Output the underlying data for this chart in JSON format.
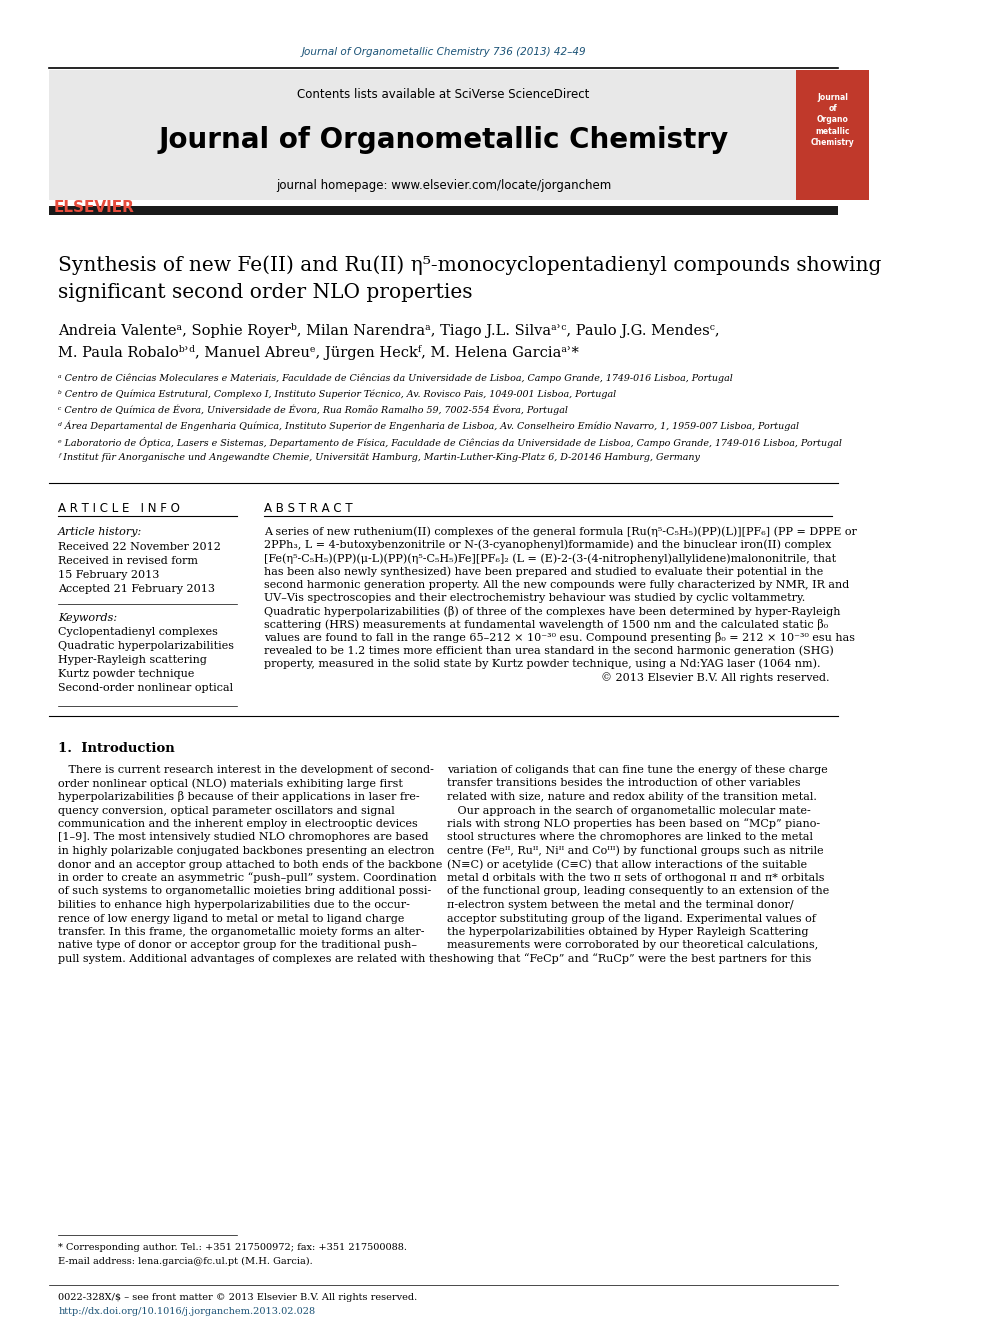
{
  "page_bg": "#ffffff",
  "top_link_text": "Journal of Organometallic Chemistry 736 (2013) 42–49",
  "top_link_color": "#1a5276",
  "journal_title": "Journal of Organometallic Chemistry",
  "journal_homepage": "journal homepage: www.elsevier.com/locate/jorganchem",
  "contents_text": "Contents lists available at ",
  "sciverse_text": "SciVerse ScienceDirect",
  "header_bg": "#e8e8e8",
  "dark_bar_color": "#1a1a1a",
  "article_title_line1": "Synthesis of new Fe(II) and Ru(II) η⁵-monocyclopentadienyl compounds showing",
  "article_title_line2": "significant second order NLO properties",
  "authors_line1": "Andreia Valenteᵃ, Sophie Royerᵇ, Milan Narendraᵃ, Tiago J.L. Silvaᵃʾᶜ, Paulo J.G. Mendesᶜ,",
  "authors_line2": "M. Paula Robaloᵇʾᵈ, Manuel Abreuᵉ, Jürgen Heckᶠ, M. Helena Garciaᵃʾ*",
  "affil_a": "ᵃ Centro de Ciências Moleculares e Materiais, Faculdade de Ciências da Universidade de Lisboa, Campo Grande, 1749-016 Lisboa, Portugal",
  "affil_b": "ᵇ Centro de Química Estrutural, Complexo I, Instituto Superior Técnico, Av. Rovisco Pais, 1049-001 Lisboa, Portugal",
  "affil_c": "ᶜ Centro de Química de Évora, Universidade de Évora, Rua Romão Ramalho 59, 7002-554 Évora, Portugal",
  "affil_d": "ᵈ Área Departamental de Engenharia Química, Instituto Superior de Engenharia de Lisboa, Av. Conselheiro Emídio Navarro, 1, 1959-007 Lisboa, Portugal",
  "affil_e": "ᵉ Laboratorio de Óptica, Lasers e Sistemas, Departamento de Física, Faculdade de Ciências da Universidade de Lisboa, Campo Grande, 1749-016 Lisboa, Portugal",
  "affil_f": "ᶠ Institut für Anorganische und Angewandte Chemie, Universität Hamburg, Martin-Luther-King-Platz 6, D-20146 Hamburg, Germany",
  "article_info_title": "A R T I C L E   I N F O",
  "article_history_label": "Article history:",
  "article_history": [
    "Received 22 November 2012",
    "Received in revised form",
    "15 February 2013",
    "Accepted 21 February 2013"
  ],
  "keywords_label": "Keywords:",
  "keywords": [
    "Cyclopentadienyl complexes",
    "Quadratic hyperpolarizabilities",
    "Hyper-Rayleigh scattering",
    "Kurtz powder technique",
    "Second-order nonlinear optical"
  ],
  "abstract_title": "A B S T R A C T",
  "abstract_lines": [
    "A series of new ruthenium(II) complexes of the general formula [Ru(η⁵-C₅H₅)(PP)(L)][PF₆] (PP = DPPE or",
    "2PPh₃, L = 4-butoxybenzonitrile or N-(3-cyanophenyl)formamide) and the binuclear iron(II) complex",
    "[Fe(η⁵-C₅H₅)(PP)(μ-L)(PP)(η⁵-C₅H₅)Fe][PF₆]₂ (L = (E)-2-(3-(4-nitrophenyl)allylidene)malononitrile, that",
    "has been also newly synthesized) have been prepared and studied to evaluate their potential in the",
    "second harmonic generation property. All the new compounds were fully characterized by NMR, IR and",
    "UV–Vis spectroscopies and their electrochemistry behaviour was studied by cyclic voltammetry.",
    "Quadratic hyperpolarizabilities (β) of three of the complexes have been determined by hyper-Rayleigh",
    "scattering (HRS) measurements at fundamental wavelength of 1500 nm and the calculated static β₀",
    "values are found to fall in the range 65–212 × 10⁻³⁰ esu. Compound presenting β₀ = 212 × 10⁻³⁰ esu has",
    "revealed to be 1.2 times more efficient than urea standard in the second harmonic generation (SHG)",
    "property, measured in the solid state by Kurtz powder technique, using a Nd:YAG laser (1064 nm).",
    "© 2013 Elsevier B.V. All rights reserved."
  ],
  "intro_title": "1.  Introduction",
  "intro_col1_lines": [
    "   There is current research interest in the development of second-",
    "order nonlinear optical (NLO) materials exhibiting large first",
    "hyperpolarizabilities β because of their applications in laser fre-",
    "quency conversion, optical parameter oscillators and signal",
    "communication and the inherent employ in electrooptic devices",
    "[1–9]. The most intensively studied NLO chromophores are based",
    "in highly polarizable conjugated backbones presenting an electron",
    "donor and an acceptor group attached to both ends of the backbone",
    "in order to create an asymmetric “push–pull” system. Coordination",
    "of such systems to organometallic moieties bring additional possi-",
    "bilities to enhance high hyperpolarizabilities due to the occur-",
    "rence of low energy ligand to metal or metal to ligand charge",
    "transfer. In this frame, the organometallic moiety forms an alter-",
    "native type of donor or acceptor group for the traditional push–",
    "pull system. Additional advantages of complexes are related with the"
  ],
  "intro_col2_lines": [
    "variation of coligands that can fine tune the energy of these charge",
    "transfer transitions besides the introduction of other variables",
    "related with size, nature and redox ability of the transition metal.",
    "   Our approach in the search of organometallic molecular mate-",
    "rials with strong NLO properties has been based on “MCp” piano-",
    "stool structures where the chromophores are linked to the metal",
    "centre (Feᴵᴵ, Ruᴵᴵ, Niᴵᴵ and Coᴵᴵᴵ) by functional groups such as nitrile",
    "(N≡C) or acetylide (C≡C) that allow interactions of the suitable",
    "metal d orbitals with the two π sets of orthogonal π and π* orbitals",
    "of the functional group, leading consequently to an extension of the",
    "π-electron system between the metal and the terminal donor/",
    "acceptor substituting group of the ligand. Experimental values of",
    "the hyperpolarizabilities obtained by Hyper Rayleigh Scattering",
    "measurements were corroborated by our theoretical calculations,",
    "showing that “FeCp” and “RuCp” were the best partners for this"
  ],
  "footnote_star": "* Corresponding author. Tel.: +351 217500972; fax: +351 217500088.",
  "footnote_email": "E-mail address: lena.garcia@fc.ul.pt (M.H. Garcia).",
  "footnote_issn": "0022-328X/$ – see front matter © 2013 Elsevier B.V. All rights reserved.",
  "footnote_doi": "http://dx.doi.org/10.1016/j.jorganchem.2013.02.028"
}
